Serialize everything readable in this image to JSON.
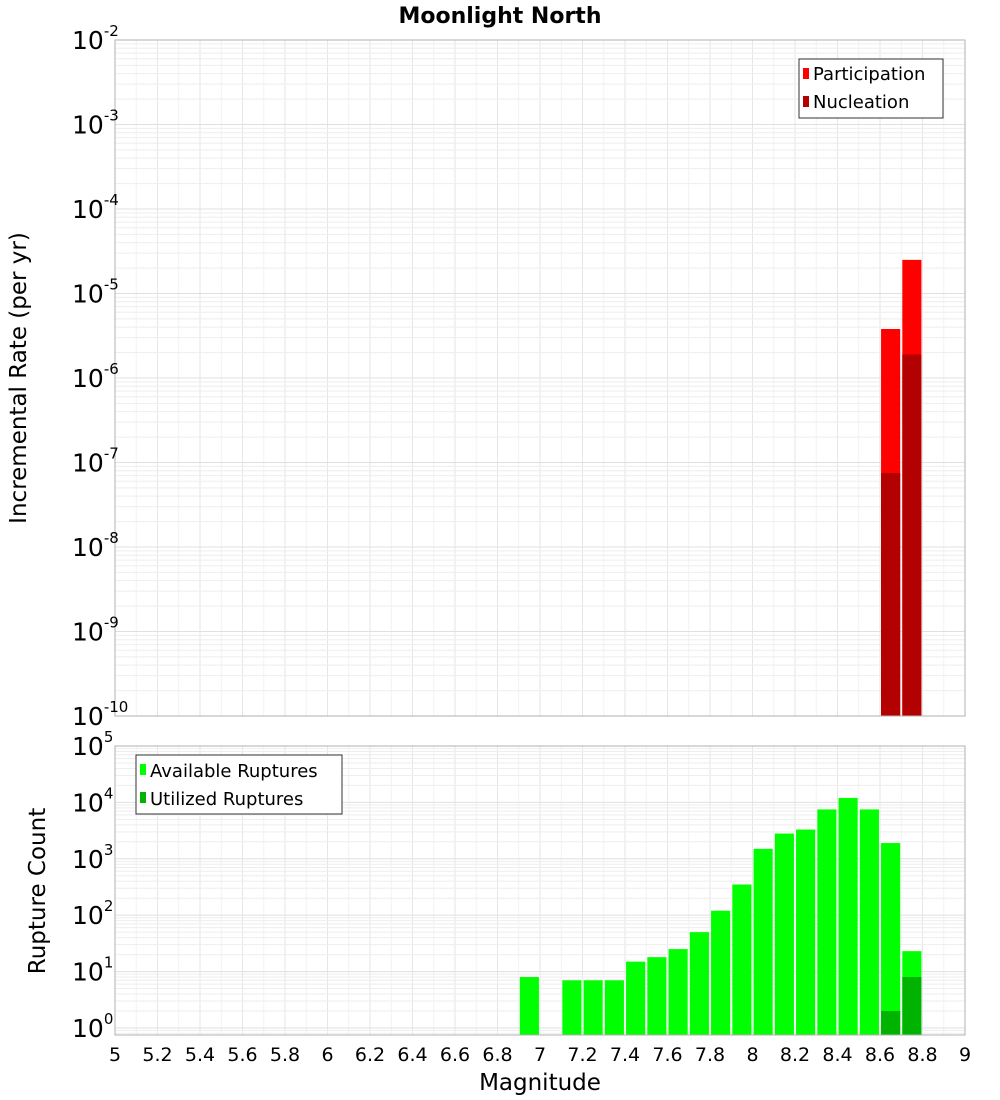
{
  "chart_data": [
    {
      "type": "bar",
      "title": "Moonlight North",
      "xlabel": "",
      "ylabel": "Incremental Rate (per yr)",
      "yscale": "log",
      "xlim": [
        5,
        9
      ],
      "ylim": [
        1e-10,
        0.01
      ],
      "yticks": [
        {
          "base": "10",
          "exp": "-2",
          "value": 0.01
        },
        {
          "base": "10",
          "exp": "-3",
          "value": 0.001
        },
        {
          "base": "10",
          "exp": "-4",
          "value": 0.0001
        },
        {
          "base": "10",
          "exp": "-5",
          "value": 1e-05
        },
        {
          "base": "10",
          "exp": "-6",
          "value": 1e-06
        },
        {
          "base": "10",
          "exp": "-7",
          "value": 1e-07
        },
        {
          "base": "10",
          "exp": "-8",
          "value": 1e-08
        },
        {
          "base": "10",
          "exp": "-9",
          "value": 1e-09
        },
        {
          "base": "10",
          "exp": "-10",
          "value": 1e-10
        }
      ],
      "bar_width": 0.09,
      "legend_position": "top-right",
      "series": [
        {
          "name": "Participation",
          "color": "#ff0000",
          "x": [
            8.65,
            8.75
          ],
          "values": [
            3.8e-06,
            2.5e-05
          ]
        },
        {
          "name": "Nucleation",
          "color": "#b30000",
          "x": [
            8.65,
            8.75
          ],
          "values": [
            7.5e-08,
            1.9e-06
          ]
        }
      ]
    },
    {
      "type": "bar",
      "title": "",
      "xlabel": "Magnitude",
      "ylabel": "Rupture Count",
      "yscale": "log",
      "xlim": [
        5,
        9
      ],
      "ylim": [
        0.75,
        100000
      ],
      "xticks": [
        "5",
        "5.2",
        "5.4",
        "5.6",
        "5.8",
        "6",
        "6.2",
        "6.4",
        "6.6",
        "6.8",
        "7",
        "7.2",
        "7.4",
        "7.6",
        "7.8",
        "8",
        "8.2",
        "8.4",
        "8.6",
        "8.8",
        "9"
      ],
      "yticks": [
        {
          "base": "10",
          "exp": "5",
          "value": 100000
        },
        {
          "base": "10",
          "exp": "4",
          "value": 10000
        },
        {
          "base": "10",
          "exp": "3",
          "value": 1000
        },
        {
          "base": "10",
          "exp": "2",
          "value": 100
        },
        {
          "base": "10",
          "exp": "1",
          "value": 10
        },
        {
          "base": "10",
          "exp": "0",
          "value": 1
        }
      ],
      "bar_width": 0.09,
      "legend_position": "top-left",
      "series": [
        {
          "name": "Available Ruptures",
          "color": "#00ff00",
          "x": [
            6.95,
            7.15,
            7.25,
            7.35,
            7.45,
            7.55,
            7.65,
            7.75,
            7.85,
            7.95,
            8.05,
            8.15,
            8.25,
            8.35,
            8.45,
            8.55,
            8.65,
            8.75
          ],
          "values": [
            8,
            7,
            7,
            7,
            15,
            18,
            25,
            50,
            120,
            350,
            1500,
            2800,
            3300,
            7500,
            12000,
            7500,
            1900,
            23
          ]
        },
        {
          "name": "Utilized Ruptures",
          "color": "#00b300",
          "x": [
            8.65,
            8.75
          ],
          "values": [
            2,
            8
          ]
        }
      ]
    }
  ]
}
